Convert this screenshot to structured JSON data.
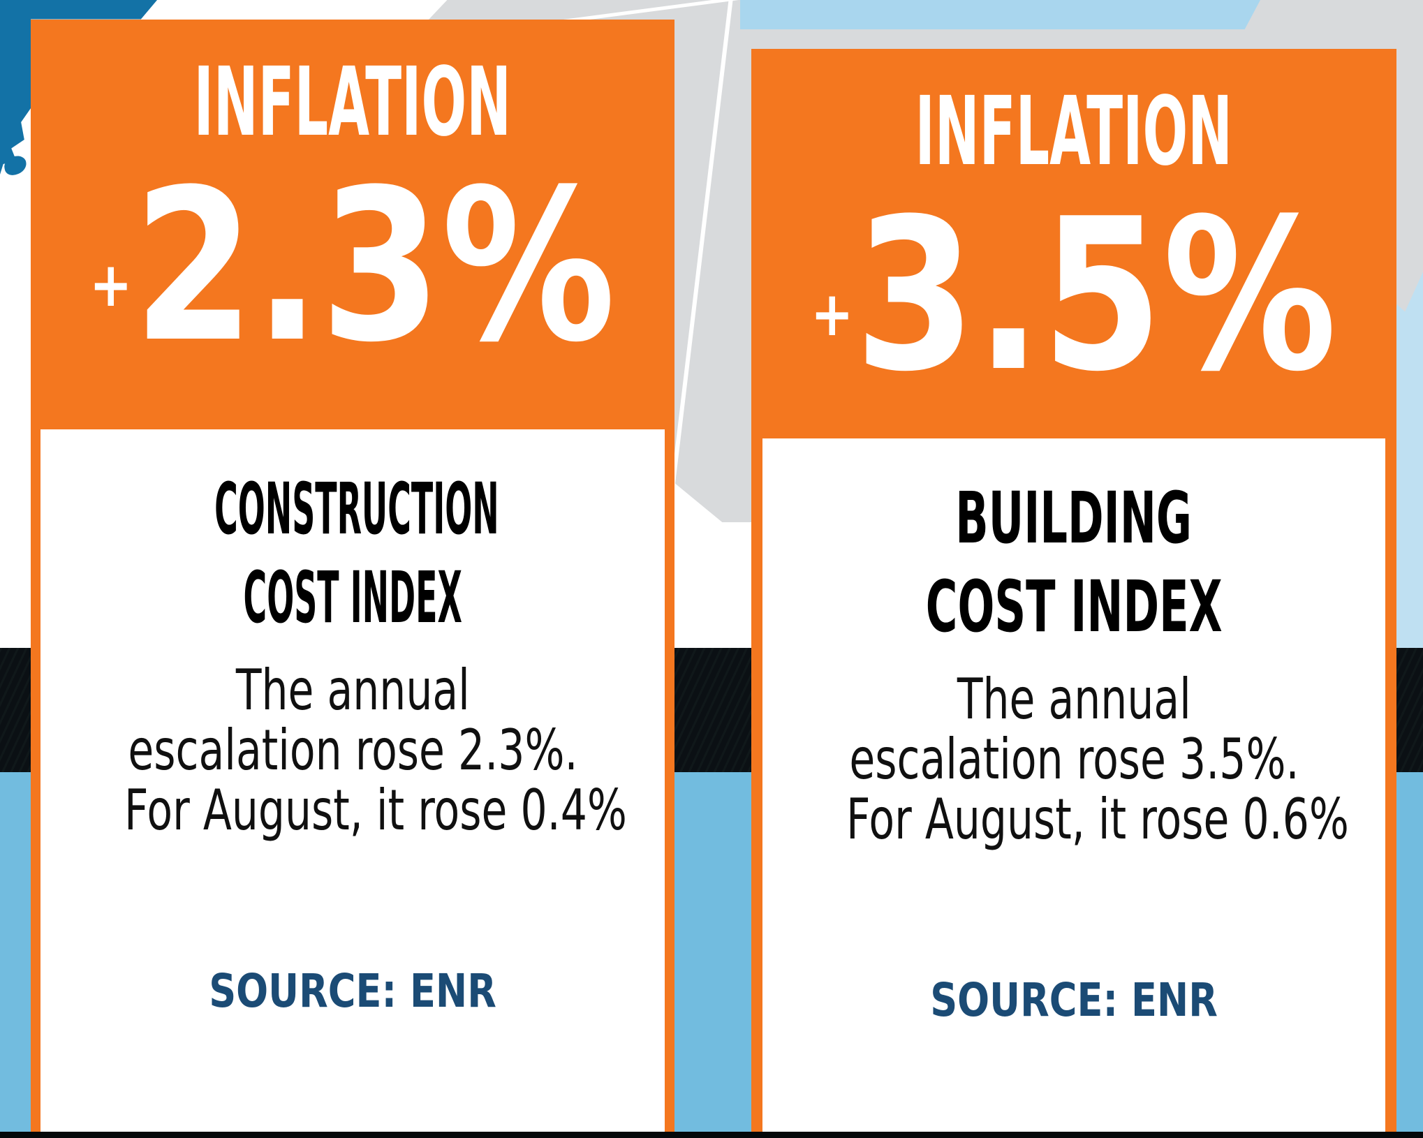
{
  "colors": {
    "orange": "#F4771F",
    "state_blue": "#1372A6",
    "map_gray": "#D8DADC",
    "water_strip": "#A9D6EE",
    "water_right": "#BFE0F2",
    "water_bottom": "#72BCDF",
    "band_black": "#0B1014",
    "navy": "#1B4B75"
  },
  "cards": [
    {
      "header_label": "INFLATION",
      "plus_sign": "+",
      "value": "2.3%",
      "title_line1": "CONSTRUCTION",
      "title_line2": "COST INDEX",
      "body_line1": "The annual",
      "body_line2": "escalation rose 2.3%.",
      "body_line3": "For August, it rose 0.4%",
      "source": "SOURCE: ENR"
    },
    {
      "header_label": "INFLATION",
      "plus_sign": "+",
      "value": "3.5%",
      "title_line1": "BUILDING",
      "title_line2": "COST INDEX",
      "body_line1": "The annual",
      "body_line2": "escalation rose 3.5%.",
      "body_line3": "For August, it rose 0.6%",
      "source": "SOURCE: ENR"
    }
  ],
  "chart_data": {
    "type": "table",
    "title": "Inflation — ENR Cost Indexes",
    "categories": [
      "Construction Cost Index",
      "Building Cost Index"
    ],
    "series": [
      {
        "name": "Annual escalation (%)",
        "values": [
          2.3,
          3.5
        ]
      },
      {
        "name": "August change (%)",
        "values": [
          0.4,
          0.6
        ]
      }
    ],
    "source": "ENR"
  }
}
